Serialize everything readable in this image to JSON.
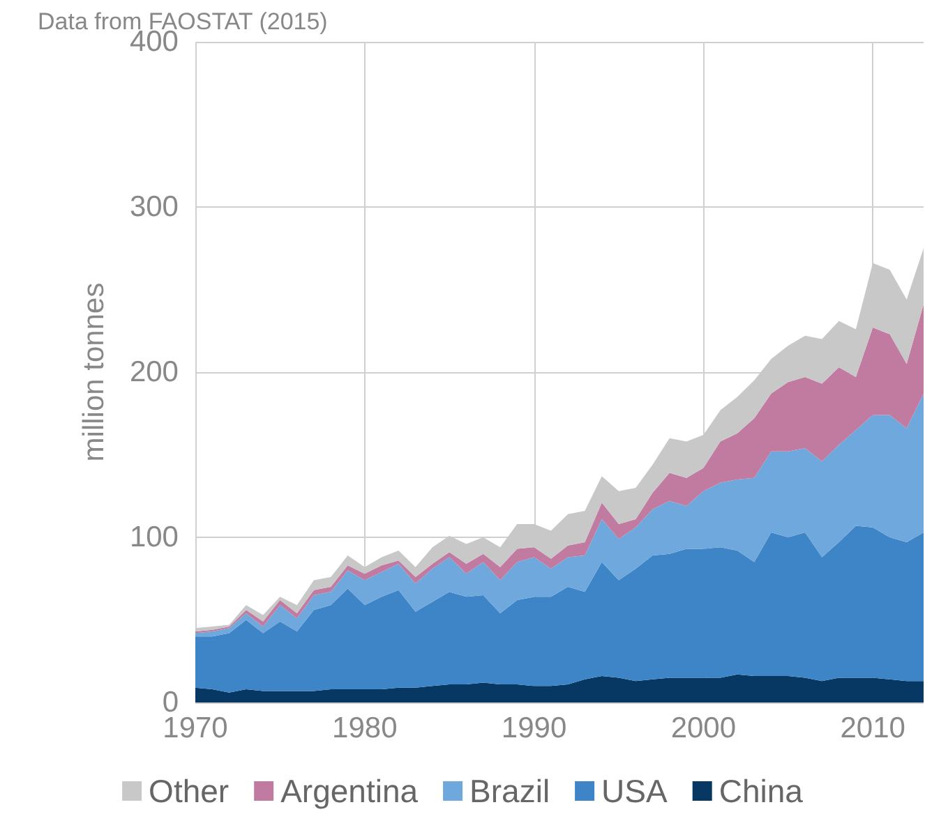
{
  "chart_data": {
    "type": "area",
    "title": "Data from FAOSTAT (2015)",
    "ylabel": "million tonnes",
    "stacked": true,
    "x": [
      1970,
      1971,
      1972,
      1973,
      1974,
      1975,
      1976,
      1977,
      1978,
      1979,
      1980,
      1981,
      1982,
      1983,
      1984,
      1985,
      1986,
      1987,
      1988,
      1989,
      1990,
      1991,
      1992,
      1993,
      1994,
      1995,
      1996,
      1997,
      1998,
      1999,
      2000,
      2001,
      2002,
      2003,
      2004,
      2005,
      2006,
      2007,
      2008,
      2009,
      2010,
      2011,
      2012,
      2013
    ],
    "series": [
      {
        "name": "China",
        "color": "#073763",
        "values": [
          9,
          8,
          6,
          8,
          7,
          7,
          7,
          7,
          8,
          8,
          8,
          8,
          9,
          9,
          10,
          11,
          11,
          12,
          11,
          11,
          10,
          10,
          11,
          14,
          16,
          15,
          13,
          14,
          15,
          15,
          15,
          15,
          17,
          16,
          16,
          16,
          15,
          13,
          15,
          15,
          15,
          14,
          13,
          13
        ]
      },
      {
        "name": "USA",
        "color": "#3d85c6",
        "values": [
          31,
          32,
          36,
          42,
          35,
          42,
          36,
          49,
          51,
          61,
          51,
          56,
          59,
          46,
          51,
          56,
          53,
          53,
          43,
          51,
          54,
          54,
          59,
          53,
          69,
          59,
          68,
          75,
          75,
          78,
          78,
          79,
          75,
          69,
          87,
          84,
          88,
          75,
          82,
          92,
          91,
          86,
          84,
          90
        ]
      },
      {
        "name": "Brazil",
        "color": "#6fa8dc",
        "values": [
          2,
          3,
          3,
          4,
          4,
          10,
          8,
          9,
          8,
          11,
          15,
          15,
          16,
          17,
          20,
          21,
          14,
          20,
          20,
          23,
          24,
          17,
          18,
          22,
          26,
          25,
          25,
          28,
          32,
          26,
          35,
          39,
          43,
          51,
          49,
          52,
          51,
          58,
          59,
          58,
          68,
          74,
          69,
          84
        ]
      },
      {
        "name": "Argentina",
        "color": "#c27ba0",
        "values": [
          1,
          1,
          1,
          2,
          3,
          3,
          3,
          3,
          3,
          3,
          4,
          4,
          2,
          4,
          3,
          3,
          6,
          5,
          8,
          8,
          6,
          6,
          7,
          8,
          10,
          9,
          5,
          10,
          17,
          17,
          14,
          25,
          28,
          36,
          35,
          42,
          43,
          47,
          47,
          32,
          53,
          49,
          39,
          54
        ]
      },
      {
        "name": "Other",
        "color": "#c8c8c8",
        "values": [
          2,
          2,
          1,
          3,
          4,
          2,
          5,
          6,
          6,
          6,
          4,
          5,
          6,
          6,
          10,
          10,
          12,
          10,
          12,
          15,
          14,
          17,
          19,
          19,
          16,
          20,
          19,
          17,
          21,
          22,
          20,
          19,
          22,
          23,
          21,
          22,
          25,
          27,
          28,
          29,
          39,
          39,
          39,
          34
        ]
      }
    ],
    "xlim": [
      1970,
      2013
    ],
    "xticks": [
      1970,
      1980,
      1990,
      2000,
      2010
    ],
    "ylim": [
      0,
      400
    ],
    "yticks": [
      0,
      100,
      200,
      300,
      400
    ],
    "grid": true,
    "legend": "bottom"
  }
}
